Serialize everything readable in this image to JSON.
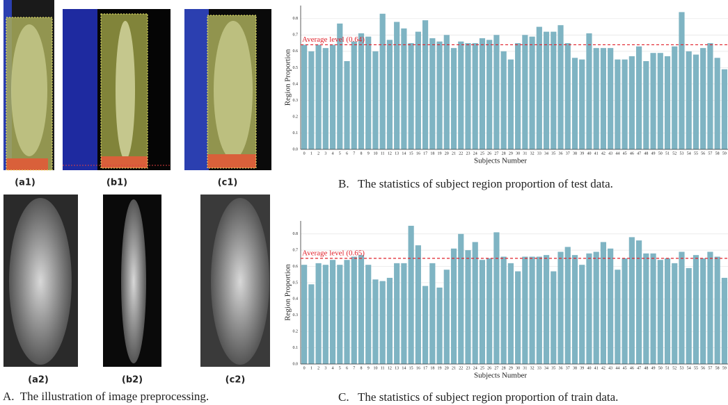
{
  "figure": {
    "panels": [
      "(a1)",
      "(b1)",
      "(c1)",
      "(a2)",
      "(b2)",
      "(c2)"
    ],
    "caption": "A.  The illustration of image preprocessing."
  },
  "chart_data": [
    {
      "type": "bar",
      "caption": "B.   The statistics of subject region proportion of test data.",
      "xlabel": "Subjects Number",
      "ylabel": "Region Proportion",
      "categories": [
        "0",
        "1",
        "2",
        "3",
        "4",
        "5",
        "6",
        "7",
        "8",
        "9",
        "10",
        "11",
        "12",
        "13",
        "14",
        "15",
        "16",
        "17",
        "18",
        "19",
        "20",
        "21",
        "22",
        "23",
        "24",
        "25",
        "26",
        "27",
        "28",
        "29",
        "30",
        "31",
        "32",
        "33",
        "34",
        "35",
        "36",
        "37",
        "38",
        "39",
        "40",
        "41",
        "42",
        "43",
        "44",
        "45",
        "46",
        "47",
        "48",
        "49",
        "50",
        "51",
        "52",
        "53",
        "54",
        "55",
        "56",
        "57",
        "58",
        "59"
      ],
      "values": [
        0.64,
        0.6,
        0.64,
        0.62,
        0.64,
        0.77,
        0.54,
        0.66,
        0.71,
        0.69,
        0.6,
        0.83,
        0.67,
        0.78,
        0.74,
        0.65,
        0.72,
        0.79,
        0.68,
        0.66,
        0.7,
        0.62,
        0.66,
        0.65,
        0.65,
        0.68,
        0.67,
        0.7,
        0.6,
        0.55,
        0.65,
        0.7,
        0.69,
        0.75,
        0.72,
        0.72,
        0.76,
        0.65,
        0.56,
        0.55,
        0.71,
        0.62,
        0.62,
        0.62,
        0.55,
        0.55,
        0.57,
        0.63,
        0.54,
        0.59,
        0.59,
        0.57,
        0.63,
        0.84,
        0.6,
        0.58,
        0.62,
        0.65,
        0.56,
        0.49
      ],
      "color": "#7fb4c3",
      "ylim": [
        0,
        0.88
      ],
      "yticks": [
        {
          "value": 0,
          "label": "0.0"
        },
        0.1,
        0.2,
        0.3,
        0.4,
        0.5,
        0.6,
        0.7,
        0.8
      ],
      "grid": true,
      "average": {
        "value": 0.64,
        "label": "Average level (0.64)",
        "color": "#e0202a"
      }
    },
    {
      "type": "bar",
      "caption": "C.   The statistics of subject region proportion of train data.",
      "xlabel": "Subjects Number",
      "ylabel": "Region Proportion",
      "categories": [
        "0",
        "1",
        "2",
        "3",
        "4",
        "5",
        "6",
        "7",
        "8",
        "9",
        "10",
        "11",
        "12",
        "13",
        "14",
        "15",
        "16",
        "17",
        "18",
        "19",
        "20",
        "21",
        "22",
        "23",
        "24",
        "25",
        "26",
        "27",
        "28",
        "29",
        "30",
        "31",
        "32",
        "33",
        "34",
        "35",
        "36",
        "37",
        "38",
        "39",
        "40",
        "41",
        "42",
        "43",
        "44",
        "45",
        "46",
        "47",
        "48",
        "49",
        "50",
        "51",
        "52",
        "53",
        "54",
        "55",
        "56",
        "57",
        "58",
        "59"
      ],
      "values": [
        0.61,
        0.49,
        0.62,
        0.61,
        0.64,
        0.61,
        0.64,
        0.66,
        0.67,
        0.61,
        0.52,
        0.51,
        0.53,
        0.62,
        0.62,
        0.85,
        0.73,
        0.48,
        0.62,
        0.47,
        0.58,
        0.71,
        0.8,
        0.7,
        0.75,
        0.64,
        0.65,
        0.81,
        0.66,
        0.62,
        0.57,
        0.66,
        0.66,
        0.66,
        0.67,
        0.57,
        0.69,
        0.72,
        0.67,
        0.61,
        0.68,
        0.69,
        0.75,
        0.71,
        0.58,
        0.65,
        0.78,
        0.76,
        0.68,
        0.68,
        0.64,
        0.65,
        0.62,
        0.69,
        0.59,
        0.67,
        0.65,
        0.69,
        0.66,
        0.53
      ],
      "color": "#7fb4c3",
      "ylim": [
        0,
        0.88
      ],
      "yticks": [
        {
          "value": 0,
          "label": "0.0"
        },
        0.1,
        0.2,
        0.3,
        0.4,
        0.5,
        0.6,
        0.7,
        0.8
      ],
      "grid": true,
      "average": {
        "value": 0.65,
        "label": "Average level (0.65)",
        "color": "#e0202a"
      }
    }
  ]
}
